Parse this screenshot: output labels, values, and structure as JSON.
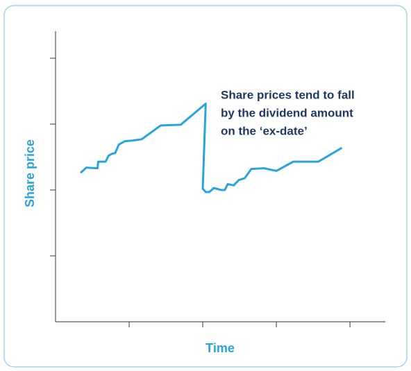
{
  "chart_data": {
    "type": "line",
    "x_label": "Time",
    "y_label": "Share price",
    "annotation": [
      "Share prices tend to fall",
      "by the dividend amount",
      "on the ‘ex-date’"
    ],
    "x": [
      0.34,
      0.42,
      0.57,
      0.58,
      0.68,
      0.72,
      0.77,
      0.81,
      0.86,
      0.94,
      1.04,
      1.17,
      1.43,
      1.7,
      2.04,
      2.0,
      2.04,
      2.09,
      2.15,
      2.25,
      2.3,
      2.34,
      2.42,
      2.49,
      2.57,
      2.66,
      2.83,
      3.0,
      3.23,
      3.57,
      3.89
    ],
    "series": [
      {
        "color": "#29a3dc",
        "values": [
          2.26,
          2.34,
          2.33,
          2.43,
          2.43,
          2.52,
          2.55,
          2.56,
          2.69,
          2.74,
          2.75,
          2.77,
          2.98,
          2.99,
          3.31,
          2.02,
          1.97,
          1.97,
          2.03,
          2.0,
          2.0,
          2.09,
          2.07,
          2.15,
          2.18,
          2.32,
          2.33,
          2.29,
          2.43,
          2.43,
          2.64
        ]
      }
    ],
    "xlim": [
      0,
      4.48
    ],
    "ylim": [
      0,
      4.41
    ],
    "xticks": [
      1,
      2,
      3,
      4
    ],
    "yticks": [
      1,
      2,
      3,
      4
    ]
  }
}
